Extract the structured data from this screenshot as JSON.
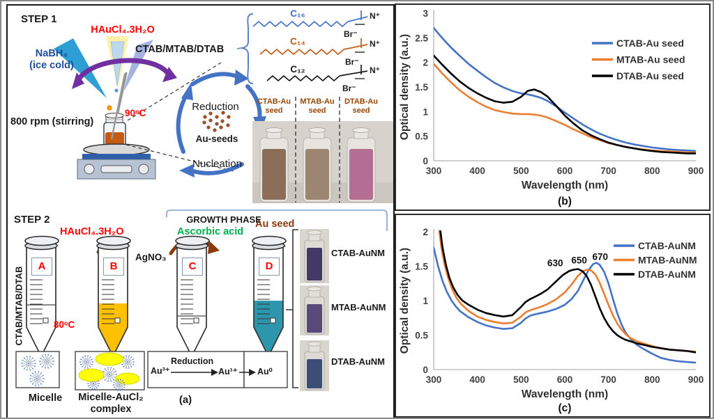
{
  "colors": {
    "red": "#FF0000",
    "blue_text": "#1F4E9C",
    "green_text": "#00B050",
    "brown_text": "#8B3A0F",
    "purple_arrow": "#7030A0",
    "cycle_arrow_blue": "#4472C4",
    "tube_b_liquid": "#FFC000",
    "tube_d_liquid": "#2E96AC",
    "micelle_yellow": "#FFFF00",
    "step1_vial_liquid": "#C55A11",
    "au_seed_dot": "#A0522D"
  },
  "panel_a": {
    "caption": "(a)",
    "step1": {
      "title": "STEP 1",
      "haucl4": "HAuCl₄.3H₂O",
      "nabh4_line1": "NaBH₄",
      "nabh4_line2": "(ice cold)",
      "surfactants": "CTAB/MTAB/DTAB",
      "temperature": "90ᵒC",
      "stirring": "800 rpm (stirring)",
      "reduction": "Reduction",
      "au_seeds": "Au-seeds",
      "nucleation": "Nucleation",
      "chains": [
        {
          "name": "C₁₆",
          "nitrogen": "N⁺",
          "bromide": "Br⁻",
          "color": "#4472C4"
        },
        {
          "name": "C₁₄",
          "nitrogen": "N⁺",
          "bromide": "Br⁻",
          "color": "#C55A11"
        },
        {
          "name": "C₁₂",
          "nitrogen": "N⁺",
          "bromide": "Br⁻",
          "color": "#1a1a1a"
        }
      ],
      "seed_vials": [
        {
          "line1": "CTAB-Au",
          "line2": "seed",
          "liquid_color": "#8a6e5a"
        },
        {
          "line1": "MTAB-Au",
          "line2": "seed",
          "liquid_color": "#9c8671"
        },
        {
          "line1": "DTAB-Au",
          "line2": "seed",
          "liquid_color": "#b26f93"
        }
      ]
    },
    "step2": {
      "title": "STEP 2",
      "growth_phase": "GROWTH PHASE",
      "haucl4": "HAuCl₄.3H₂O",
      "ascorbic_acid": "Ascorbic acid",
      "au_seed": "Au seed",
      "agno3": "AgNO₃",
      "temperature": "80ᵒC",
      "surfactants_vertical": "CTAB/MTAB/DTAB",
      "tube_labels": [
        "A",
        "B",
        "C",
        "D"
      ],
      "micelle_label": "Micelle",
      "micelle_complex_line1": "Micelle-AuCl₂",
      "micelle_complex_line2": "complex",
      "reaction": {
        "reactant": "Au³⁺",
        "arrow_label": "Reduction",
        "intermediate": "Au¹⁺",
        "product": "Au⁰"
      },
      "product_vials": [
        {
          "label": "CTAB-AuNM",
          "liquid_color": "#413a64"
        },
        {
          "label": "MTAB-AuNM",
          "liquid_color": "#5a4a7c"
        },
        {
          "label": "DTAB-AuNM",
          "liquid_color": "#3c4e78"
        }
      ]
    }
  },
  "chart_data": [
    {
      "id": "chart_b",
      "type": "line",
      "caption": "(b)",
      "xlabel": "Wavelength (nm)",
      "ylabel": "Optical density (a.u.)",
      "xlim": [
        300,
        900
      ],
      "ylim": [
        0,
        3
      ],
      "xticks": [
        300,
        400,
        500,
        600,
        700,
        800,
        900
      ],
      "yticks": [
        0,
        0.5,
        1,
        1.5,
        2,
        2.5,
        3
      ],
      "grid": false,
      "legend_position": "top-right",
      "series": [
        {
          "name": "CTAB-Au seed",
          "color": "#4472C4",
          "x": [
            300,
            320,
            340,
            360,
            380,
            400,
            420,
            440,
            460,
            480,
            500,
            515,
            530,
            545,
            560,
            580,
            600,
            620,
            640,
            660,
            680,
            700,
            720,
            740,
            760,
            780,
            800,
            820,
            840,
            860,
            880,
            900
          ],
          "y": [
            2.7,
            2.49,
            2.3,
            2.13,
            1.97,
            1.83,
            1.7,
            1.58,
            1.49,
            1.42,
            1.37,
            1.35,
            1.32,
            1.28,
            1.22,
            1.11,
            0.98,
            0.86,
            0.74,
            0.64,
            0.55,
            0.48,
            0.42,
            0.37,
            0.33,
            0.3,
            0.27,
            0.25,
            0.23,
            0.22,
            0.21,
            0.2
          ]
        },
        {
          "name": "MTAB-Au seed",
          "color": "#ED7D31",
          "x": [
            300,
            320,
            340,
            360,
            380,
            400,
            420,
            440,
            460,
            480,
            500,
            515,
            530,
            545,
            560,
            580,
            600,
            620,
            640,
            660,
            680,
            700,
            720,
            740,
            760,
            780,
            800,
            820,
            840,
            860,
            880,
            900
          ],
          "y": [
            1.97,
            1.77,
            1.59,
            1.43,
            1.3,
            1.19,
            1.1,
            1.03,
            0.99,
            0.96,
            0.95,
            0.95,
            0.94,
            0.92,
            0.88,
            0.81,
            0.73,
            0.64,
            0.56,
            0.48,
            0.42,
            0.36,
            0.32,
            0.28,
            0.25,
            0.23,
            0.21,
            0.2,
            0.19,
            0.18,
            0.17,
            0.17
          ]
        },
        {
          "name": "DTAB-Au seed",
          "color": "#000000",
          "x": [
            300,
            320,
            340,
            360,
            380,
            400,
            420,
            440,
            460,
            480,
            500,
            515,
            530,
            545,
            560,
            580,
            600,
            620,
            640,
            660,
            680,
            700,
            720,
            740,
            760,
            780,
            800,
            820,
            840,
            860,
            880,
            900
          ],
          "y": [
            2.14,
            1.95,
            1.77,
            1.61,
            1.48,
            1.37,
            1.28,
            1.21,
            1.18,
            1.2,
            1.3,
            1.42,
            1.45,
            1.4,
            1.31,
            1.12,
            0.92,
            0.76,
            0.62,
            0.52,
            0.44,
            0.37,
            0.32,
            0.28,
            0.25,
            0.22,
            0.2,
            0.18,
            0.17,
            0.16,
            0.15,
            0.15
          ]
        }
      ],
      "annotations": []
    },
    {
      "id": "chart_c",
      "type": "line",
      "caption": "(c)",
      "xlabel": "Wavelength (nm)",
      "ylabel": "Optical density (a.u.)",
      "xlim": [
        300,
        900
      ],
      "ylim": [
        0,
        2
      ],
      "xticks": [
        300,
        400,
        500,
        600,
        700,
        800,
        900
      ],
      "yticks": [
        0,
        0.5,
        1,
        1.5,
        2
      ],
      "grid": false,
      "legend_position": "top-right",
      "series": [
        {
          "name": "CTAB-AuNM",
          "color": "#4472C4",
          "x": [
            300,
            310,
            320,
            330,
            340,
            350,
            360,
            380,
            400,
            420,
            440,
            460,
            480,
            500,
            510,
            520,
            530,
            545,
            560,
            580,
            600,
            615,
            630,
            645,
            655,
            665,
            672,
            680,
            690,
            700,
            710,
            720,
            730,
            740,
            750,
            765,
            780,
            800,
            820,
            840,
            860,
            880,
            900
          ],
          "y": [
            1.77,
            1.5,
            1.29,
            1.13,
            1.01,
            0.92,
            0.85,
            0.76,
            0.69,
            0.64,
            0.61,
            0.59,
            0.6,
            0.68,
            0.74,
            0.78,
            0.8,
            0.82,
            0.84,
            0.88,
            0.94,
            1.02,
            1.14,
            1.33,
            1.45,
            1.53,
            1.55,
            1.52,
            1.42,
            1.25,
            1.03,
            0.82,
            0.65,
            0.53,
            0.45,
            0.36,
            0.3,
            0.23,
            0.17,
            0.14,
            0.12,
            0.11,
            0.1
          ]
        },
        {
          "name": "MTAB-AuNM",
          "color": "#ED7D31",
          "x": [
            312,
            318,
            325,
            333,
            342,
            352,
            363,
            380,
            400,
            420,
            440,
            460,
            480,
            500,
            510,
            520,
            530,
            545,
            560,
            580,
            600,
            615,
            630,
            640,
            650,
            660,
            670,
            680,
            690,
            700,
            710,
            720,
            730,
            740,
            750,
            765,
            780,
            800,
            820,
            840,
            860,
            880,
            900
          ],
          "y": [
            2.05,
            1.75,
            1.52,
            1.33,
            1.17,
            1.04,
            0.95,
            0.85,
            0.77,
            0.72,
            0.69,
            0.67,
            0.68,
            0.77,
            0.83,
            0.86,
            0.88,
            0.91,
            0.95,
            1.02,
            1.12,
            1.23,
            1.36,
            1.42,
            1.45,
            1.44,
            1.38,
            1.26,
            1.1,
            0.94,
            0.79,
            0.67,
            0.58,
            0.51,
            0.46,
            0.41,
            0.38,
            0.34,
            0.31,
            0.29,
            0.28,
            0.27,
            0.26
          ]
        },
        {
          "name": "DTAB-AuNM",
          "color": "#000000",
          "x": [
            314,
            320,
            328,
            336,
            345,
            355,
            366,
            380,
            400,
            420,
            440,
            460,
            480,
            500,
            510,
            520,
            530,
            545,
            560,
            580,
            595,
            610,
            620,
            630,
            640,
            650,
            660,
            670,
            680,
            690,
            700,
            710,
            720,
            730,
            740,
            750,
            765,
            780,
            800,
            820,
            840,
            860,
            880,
            900
          ],
          "y": [
            2.08,
            1.78,
            1.52,
            1.33,
            1.19,
            1.08,
            1.0,
            0.94,
            0.87,
            0.82,
            0.79,
            0.77,
            0.79,
            0.91,
            0.98,
            1.02,
            1.05,
            1.1,
            1.16,
            1.28,
            1.37,
            1.43,
            1.45,
            1.46,
            1.43,
            1.36,
            1.23,
            1.06,
            0.89,
            0.75,
            0.64,
            0.56,
            0.5,
            0.46,
            0.43,
            0.41,
            0.38,
            0.36,
            0.33,
            0.31,
            0.29,
            0.28,
            0.27,
            0.25
          ]
        }
      ],
      "annotations": [
        {
          "label": "630",
          "x": 578,
          "y": 1.54
        },
        {
          "label": "650",
          "x": 633,
          "y": 1.58
        },
        {
          "label": "670",
          "x": 681,
          "y": 1.63
        }
      ]
    }
  ]
}
